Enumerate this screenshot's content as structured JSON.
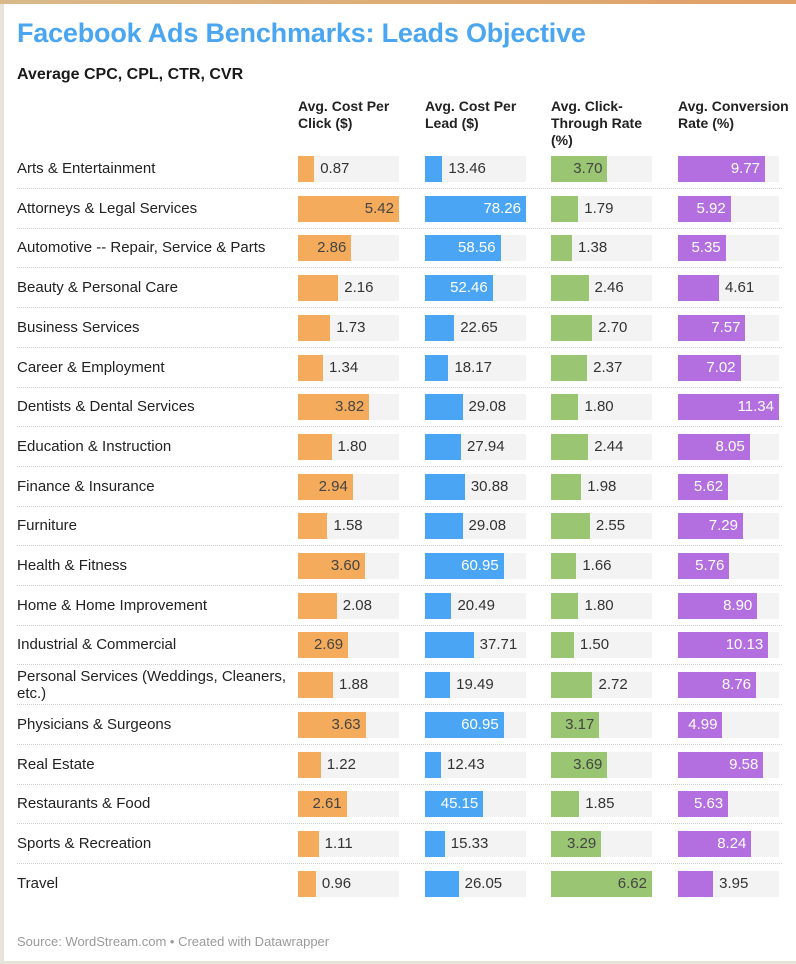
{
  "title": "Facebook Ads Benchmarks: Leads Objective",
  "subtitle": "Average CPC, CPL, CTR, CVR",
  "footer": "Source: WordStream.com • Created with Datawrapper",
  "chart_data": {
    "type": "table",
    "title": "Facebook Ads Benchmarks: Leads Objective",
    "subtitle": "Average CPC, CPL, CTR, CVR",
    "columns": [
      {
        "key": "cpc",
        "label": "Avg. Cost Per Click ($)",
        "color": "#f4ac5c",
        "max": 5.42,
        "inside_text": "#444444"
      },
      {
        "key": "cpl",
        "label": "Avg. Cost Per Lead ($)",
        "color": "#4aa6f4",
        "max": 78.26,
        "inside_text": "#ffffff"
      },
      {
        "key": "ctr",
        "label": "Avg. Click-Through Rate (%)",
        "color": "#9ac674",
        "max": 6.62,
        "inside_text": "#444444"
      },
      {
        "key": "cvr",
        "label": "Avg. Conversion Rate (%)",
        "color": "#b36ee0",
        "max": 11.34,
        "inside_text": "#ffffff"
      }
    ],
    "categories": [
      "Arts & Entertainment",
      "Attorneys & Legal Services",
      "Automotive -- Repair, Service & Parts",
      "Beauty & Personal Care",
      "Business Services",
      "Career & Employment",
      "Dentists & Dental Services",
      "Education & Instruction",
      "Finance & Insurance",
      "Furniture",
      "Health & Fitness",
      "Home & Home Improvement",
      "Industrial & Commercial",
      "Personal Services (Weddings, Cleaners, etc.)",
      "Physicians & Surgeons",
      "Real Estate",
      "Restaurants & Food",
      "Sports & Recreation",
      "Travel"
    ],
    "series": [
      {
        "name": "Avg. Cost Per Click ($)",
        "values": [
          0.87,
          5.42,
          2.86,
          2.16,
          1.73,
          1.34,
          3.82,
          1.8,
          2.94,
          1.58,
          3.6,
          2.08,
          2.69,
          1.88,
          3.63,
          1.22,
          2.61,
          1.11,
          0.96
        ]
      },
      {
        "name": "Avg. Cost Per Lead ($)",
        "values": [
          13.46,
          78.26,
          58.56,
          52.46,
          22.65,
          18.17,
          29.08,
          27.94,
          30.88,
          29.08,
          60.95,
          20.49,
          37.71,
          19.49,
          60.95,
          12.43,
          45.15,
          15.33,
          26.05
        ]
      },
      {
        "name": "Avg. Click-Through Rate (%)",
        "values": [
          3.7,
          1.79,
          1.38,
          2.46,
          2.7,
          2.37,
          1.8,
          2.44,
          1.98,
          2.55,
          1.66,
          1.8,
          1.5,
          2.72,
          3.17,
          3.69,
          1.85,
          3.29,
          6.62
        ]
      },
      {
        "name": "Avg. Conversion Rate (%)",
        "values": [
          9.77,
          5.92,
          5.35,
          4.61,
          7.57,
          7.02,
          11.34,
          8.05,
          5.62,
          7.29,
          5.76,
          8.9,
          10.13,
          8.76,
          4.99,
          9.58,
          5.63,
          8.24,
          3.95
        ]
      }
    ]
  }
}
